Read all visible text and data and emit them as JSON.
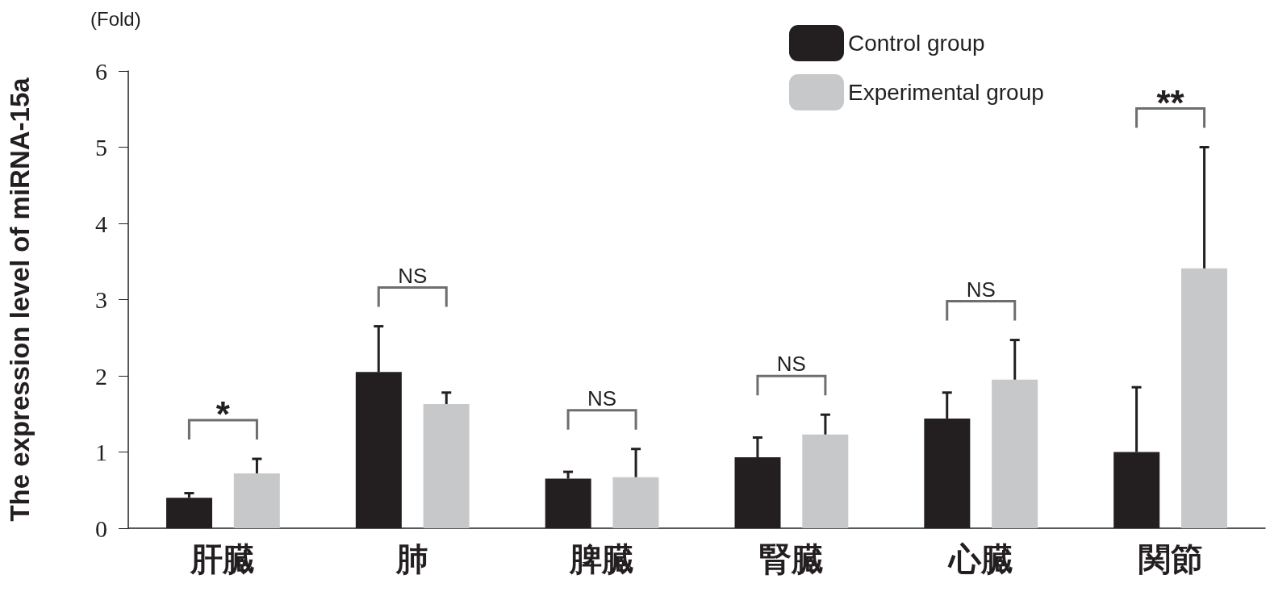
{
  "chart_data": {
    "type": "bar",
    "ylabel": "The expression level of miRNA-15a",
    "categories": [
      "肝臓",
      "肺",
      "脾臓",
      "腎臓",
      "心臓",
      "関節"
    ],
    "series": [
      {
        "name": "Control group",
        "color": "#231f20",
        "values": [
          0.4,
          2.05,
          0.65,
          0.93,
          1.44,
          1.0
        ],
        "errors": [
          [
            0.4,
            0.46
          ],
          [
            2.05,
            2.65
          ],
          [
            0.65,
            0.74
          ],
          [
            0.93,
            1.19
          ],
          [
            1.44,
            1.78
          ],
          [
            1.0,
            1.85
          ]
        ]
      },
      {
        "name": "Experimental group",
        "color": "#c7c8ca",
        "values": [
          0.72,
          1.63,
          0.67,
          1.23,
          1.95,
          3.41
        ],
        "errors": [
          [
            0.72,
            0.91
          ],
          [
            1.63,
            1.78
          ],
          [
            0.67,
            1.04
          ],
          [
            1.23,
            1.49
          ],
          [
            1.95,
            2.47
          ],
          [
            3.41,
            5.0
          ]
        ]
      }
    ],
    "ylim": [
      0,
      6
    ],
    "yticks": [
      0,
      1,
      2,
      3,
      4,
      5,
      6
    ],
    "grid": false,
    "legend": "top right",
    "annotations": [
      "(Fold)",
      "*",
      "NS",
      "NS",
      "NS",
      "NS",
      "**"
    ]
  }
}
